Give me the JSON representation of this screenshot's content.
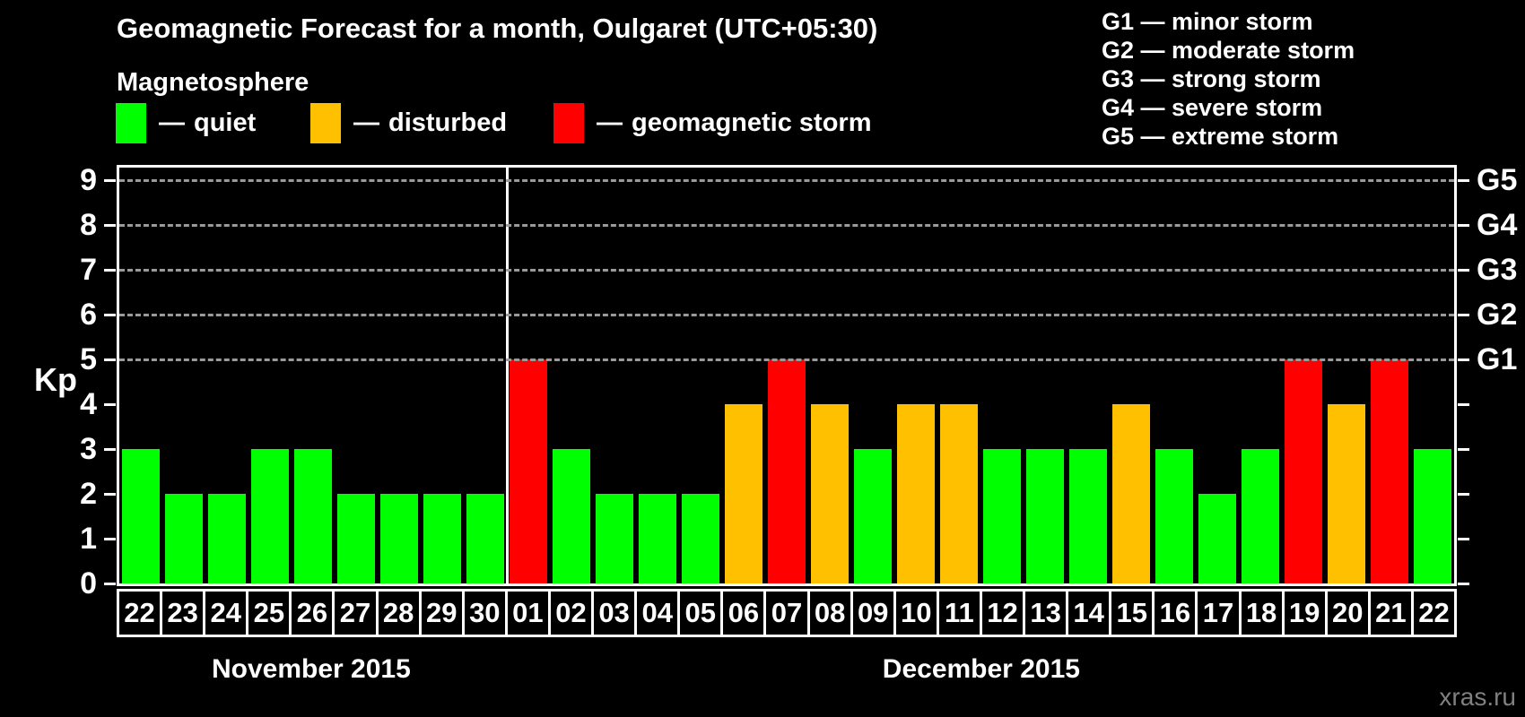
{
  "title": "Geomagnetic Forecast for a month, Oulgaret (UTC+05:30)",
  "magnetosphere_label": "Magnetosphere",
  "legend_dash": "—",
  "legend": {
    "items": [
      {
        "label": "quiet",
        "status": "quiet",
        "color": "#00FF00"
      },
      {
        "label": "disturbed",
        "status": "disturbed",
        "color": "#FFC000"
      },
      {
        "label": "geomagnetic storm",
        "status": "storm",
        "color": "#FF0000"
      }
    ]
  },
  "g_scale_legend": [
    {
      "level": "G1",
      "description": "minor storm"
    },
    {
      "level": "G2",
      "description": "moderate storm"
    },
    {
      "level": "G3",
      "description": "strong storm"
    },
    {
      "level": "G4",
      "description": "severe storm"
    },
    {
      "level": "G5",
      "description": "extreme storm"
    }
  ],
  "axis": {
    "ylabel": "Kp",
    "yticks": [
      0,
      1,
      2,
      3,
      4,
      5,
      6,
      7,
      8,
      9
    ],
    "gridlines_kp": [
      5,
      6,
      7,
      8,
      9
    ],
    "right_axis": [
      {
        "label": "G1",
        "kp": 5
      },
      {
        "label": "G2",
        "kp": 6
      },
      {
        "label": "G3",
        "kp": 7
      },
      {
        "label": "G4",
        "kp": 8
      },
      {
        "label": "G5",
        "kp": 9
      }
    ]
  },
  "watermark": "xras.ru",
  "chart_data": {
    "type": "bar",
    "title": "Geomagnetic Forecast for a month, Oulgaret (UTC+05:30)",
    "xlabel": "",
    "ylabel": "Kp",
    "ylim": [
      0,
      9.4
    ],
    "grid": "dashed at Kp 5-9",
    "legend_position": "top",
    "colors": {
      "quiet": "#00FF00",
      "disturbed": "#FFC000",
      "storm": "#FF0000"
    },
    "months": [
      {
        "label": "November 2015",
        "days": 9
      },
      {
        "label": "December 2015",
        "days": 22
      }
    ],
    "bars": [
      {
        "month": "November 2015",
        "day": "22",
        "kp": 3,
        "status": "quiet"
      },
      {
        "month": "November 2015",
        "day": "23",
        "kp": 2,
        "status": "quiet"
      },
      {
        "month": "November 2015",
        "day": "24",
        "kp": 2,
        "status": "quiet"
      },
      {
        "month": "November 2015",
        "day": "25",
        "kp": 3,
        "status": "quiet"
      },
      {
        "month": "November 2015",
        "day": "26",
        "kp": 3,
        "status": "quiet"
      },
      {
        "month": "November 2015",
        "day": "27",
        "kp": 2,
        "status": "quiet"
      },
      {
        "month": "November 2015",
        "day": "28",
        "kp": 2,
        "status": "quiet"
      },
      {
        "month": "November 2015",
        "day": "29",
        "kp": 2,
        "status": "quiet"
      },
      {
        "month": "November 2015",
        "day": "30",
        "kp": 2,
        "status": "quiet"
      },
      {
        "month": "December 2015",
        "day": "01",
        "kp": 5,
        "status": "storm"
      },
      {
        "month": "December 2015",
        "day": "02",
        "kp": 3,
        "status": "quiet"
      },
      {
        "month": "December 2015",
        "day": "03",
        "kp": 2,
        "status": "quiet"
      },
      {
        "month": "December 2015",
        "day": "04",
        "kp": 2,
        "status": "quiet"
      },
      {
        "month": "December 2015",
        "day": "05",
        "kp": 2,
        "status": "quiet"
      },
      {
        "month": "December 2015",
        "day": "06",
        "kp": 4,
        "status": "disturbed"
      },
      {
        "month": "December 2015",
        "day": "07",
        "kp": 5,
        "status": "storm"
      },
      {
        "month": "December 2015",
        "day": "08",
        "kp": 4,
        "status": "disturbed"
      },
      {
        "month": "December 2015",
        "day": "09",
        "kp": 3,
        "status": "quiet"
      },
      {
        "month": "December 2015",
        "day": "10",
        "kp": 4,
        "status": "disturbed"
      },
      {
        "month": "December 2015",
        "day": "11",
        "kp": 4,
        "status": "disturbed"
      },
      {
        "month": "December 2015",
        "day": "12",
        "kp": 3,
        "status": "quiet"
      },
      {
        "month": "December 2015",
        "day": "13",
        "kp": 3,
        "status": "quiet"
      },
      {
        "month": "December 2015",
        "day": "14",
        "kp": 3,
        "status": "quiet"
      },
      {
        "month": "December 2015",
        "day": "15",
        "kp": 4,
        "status": "disturbed"
      },
      {
        "month": "December 2015",
        "day": "16",
        "kp": 3,
        "status": "quiet"
      },
      {
        "month": "December 2015",
        "day": "17",
        "kp": 2,
        "status": "quiet"
      },
      {
        "month": "December 2015",
        "day": "18",
        "kp": 3,
        "status": "quiet"
      },
      {
        "month": "December 2015",
        "day": "19",
        "kp": 5,
        "status": "storm"
      },
      {
        "month": "December 2015",
        "day": "20",
        "kp": 4,
        "status": "disturbed"
      },
      {
        "month": "December 2015",
        "day": "21",
        "kp": 5,
        "status": "storm"
      },
      {
        "month": "December 2015",
        "day": "22",
        "kp": 3,
        "status": "quiet"
      }
    ]
  }
}
